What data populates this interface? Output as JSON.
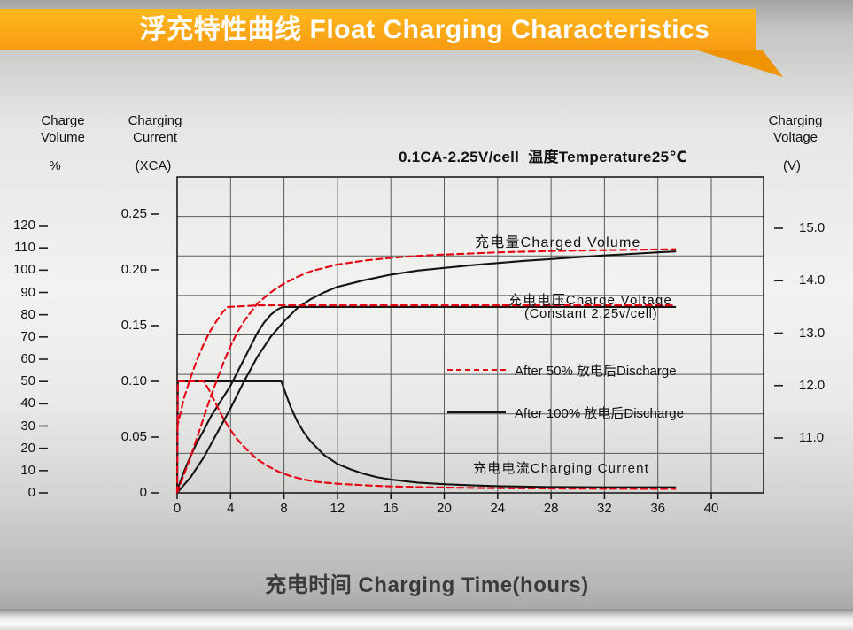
{
  "colors": {
    "banner_orange": "#f89b13",
    "accent_red": "#e60012",
    "curve_black": "#141414"
  },
  "chart_data": {
    "type": "line",
    "title": "浮充特性曲线 Float Charging Characteristics",
    "subtitle": "0.1CA-2.25V/cell  温度Temperature25℃",
    "xlabel": "充电时间 Charging Time(hours)",
    "grid": true,
    "axes": {
      "x": {
        "title": "充电时间 Charging Time(hours)",
        "range": [
          0,
          44
        ],
        "ticks": [
          "0",
          "4",
          "8",
          "12",
          "16",
          "20",
          "24",
          "28",
          "32",
          "36",
          "40"
        ]
      },
      "percent": {
        "title": "Charge Volume",
        "unit": "%",
        "range": [
          0,
          142
        ],
        "ticks": [
          "0",
          "10",
          "20",
          "30",
          "40",
          "50",
          "60",
          "70",
          "80",
          "90",
          "100",
          "110",
          "120"
        ]
      },
      "current": {
        "title": "Charging Current",
        "unit": "(XCA)",
        "range": [
          0,
          0.283
        ],
        "ticks": [
          "0",
          "0.05",
          "0.10",
          "0.15",
          "0.20",
          "0.25"
        ]
      },
      "voltage": {
        "title": "Charging Voltage",
        "unit": "(V)",
        "range": [
          9.95,
          15.98
        ],
        "ticks": [
          "11.0",
          "12.0",
          "13.0",
          "14.0",
          "15.0"
        ]
      }
    },
    "annotations": {
      "charged_volume": "充电量Charged Volume",
      "charge_voltage": "充电电压Charge Voltage",
      "charge_voltage_sub": "(Constant 2.25v/cell)",
      "charging_current": "充电电流Charging Current"
    },
    "legend": [
      {
        "style": "dashed",
        "color": "#e60012",
        "label": "After 50% 放电后Discharge"
      },
      {
        "style": "solid",
        "color": "#141414",
        "label": "After 100% 放电后Discharge"
      }
    ],
    "series": [
      {
        "id": "charged-volume-100",
        "name": "充电量 Charged Volume (after 100% discharge)",
        "axis": "percent",
        "line": "solid",
        "color": "#141414",
        "points": [
          [
            0,
            0
          ],
          [
            1,
            7
          ],
          [
            2,
            16
          ],
          [
            3,
            27
          ],
          [
            4,
            38
          ],
          [
            5,
            50
          ],
          [
            6,
            61
          ],
          [
            7,
            70
          ],
          [
            8,
            77
          ],
          [
            9,
            83
          ],
          [
            10,
            87
          ],
          [
            11,
            90
          ],
          [
            12,
            92.5
          ],
          [
            14,
            95.5
          ],
          [
            16,
            98
          ],
          [
            18,
            99.8
          ],
          [
            20,
            101
          ],
          [
            22,
            102.2
          ],
          [
            24,
            103.2
          ],
          [
            26,
            104.2
          ],
          [
            28,
            105
          ],
          [
            30,
            105.8
          ],
          [
            32,
            106.6
          ],
          [
            34,
            107.3
          ],
          [
            36,
            108
          ],
          [
            37.3,
            108.4
          ]
        ]
      },
      {
        "id": "voltage-100",
        "name": "充电电压 Charge Voltage (after 100% discharge)",
        "axis": "voltage",
        "line": "solid",
        "color": "#141414",
        "points": [
          [
            0,
            10
          ],
          [
            0.5,
            10.35
          ],
          [
            1,
            10.65
          ],
          [
            1.5,
            10.92
          ],
          [
            2,
            11.15
          ],
          [
            2.5,
            11.4
          ],
          [
            3,
            11.6
          ],
          [
            3.5,
            11.8
          ],
          [
            4,
            12
          ],
          [
            4.5,
            12.25
          ],
          [
            5,
            12.5
          ],
          [
            5.5,
            12.75
          ],
          [
            6,
            13
          ],
          [
            6.5,
            13.2
          ],
          [
            7,
            13.35
          ],
          [
            7.5,
            13.45
          ],
          [
            7.9,
            13.5
          ],
          [
            12,
            13.5
          ],
          [
            18,
            13.5
          ],
          [
            24,
            13.5
          ],
          [
            30,
            13.5
          ],
          [
            37.3,
            13.5
          ]
        ]
      },
      {
        "id": "current-100",
        "name": "充电电流 Charging Current (after 100% discharge)",
        "axis": "current",
        "line": "solid",
        "color": "#141414",
        "points": [
          [
            0,
            0
          ],
          [
            0.05,
            0.1
          ],
          [
            4,
            0.1
          ],
          [
            7.8,
            0.1
          ],
          [
            8.1,
            0.09
          ],
          [
            8.5,
            0.077
          ],
          [
            9,
            0.064
          ],
          [
            9.5,
            0.054
          ],
          [
            10,
            0.046
          ],
          [
            11,
            0.034
          ],
          [
            12,
            0.026
          ],
          [
            13,
            0.021
          ],
          [
            14,
            0.017
          ],
          [
            15,
            0.014
          ],
          [
            16,
            0.012
          ],
          [
            18,
            0.0092
          ],
          [
            20,
            0.0078
          ],
          [
            22,
            0.0068
          ],
          [
            24,
            0.006
          ],
          [
            26,
            0.0056
          ],
          [
            28,
            0.0052
          ],
          [
            32,
            0.005
          ],
          [
            36,
            0.005
          ],
          [
            37.3,
            0.005
          ]
        ]
      },
      {
        "id": "charged-volume-50",
        "name": "充电量 Charged Volume (after 50% discharge)",
        "axis": "percent",
        "line": "dashed",
        "color": "#e60012",
        "points": [
          [
            0,
            0
          ],
          [
            0.5,
            8
          ],
          [
            1,
            16
          ],
          [
            1.5,
            25
          ],
          [
            2,
            34
          ],
          [
            2.5,
            43
          ],
          [
            3,
            51
          ],
          [
            3.5,
            59
          ],
          [
            4,
            66
          ],
          [
            4.5,
            72
          ],
          [
            5,
            77
          ],
          [
            6,
            85
          ],
          [
            7,
            90
          ],
          [
            8,
            94
          ],
          [
            9,
            97
          ],
          [
            10,
            99.5
          ],
          [
            11,
            101
          ],
          [
            12,
            102.5
          ],
          [
            14,
            104.3
          ],
          [
            16,
            105.5
          ],
          [
            18,
            106.4
          ],
          [
            20,
            107
          ],
          [
            22,
            107.5
          ],
          [
            24,
            108
          ],
          [
            28,
            108.6
          ],
          [
            32,
            109
          ],
          [
            36,
            109.3
          ],
          [
            37.3,
            109.4
          ]
        ]
      },
      {
        "id": "voltage-50",
        "name": "充电电压 Charge Voltage (after 50% discharge)",
        "axis": "voltage",
        "line": "dashed",
        "color": "#e60012",
        "points": [
          [
            0,
            11.2
          ],
          [
            0.5,
            11.75
          ],
          [
            1,
            12.15
          ],
          [
            1.5,
            12.5
          ],
          [
            2,
            12.8
          ],
          [
            2.5,
            13.05
          ],
          [
            3,
            13.25
          ],
          [
            3.4,
            13.4
          ],
          [
            3.8,
            13.5
          ],
          [
            6,
            13.53
          ],
          [
            12,
            13.53
          ],
          [
            18,
            13.53
          ],
          [
            24,
            13.53
          ],
          [
            30,
            13.53
          ],
          [
            37.3,
            13.53
          ]
        ]
      },
      {
        "id": "current-50",
        "name": "充电电流 Charging Current (after 50% discharge)",
        "axis": "current",
        "line": "dashed",
        "color": "#e60012",
        "points": [
          [
            0,
            0
          ],
          [
            0.05,
            0.1
          ],
          [
            2,
            0.1
          ],
          [
            2.4,
            0.092
          ],
          [
            2.9,
            0.08
          ],
          [
            3.4,
            0.068
          ],
          [
            3.9,
            0.058
          ],
          [
            4.5,
            0.048
          ],
          [
            5.2,
            0.039
          ],
          [
            6,
            0.03
          ],
          [
            6.8,
            0.024
          ],
          [
            7.6,
            0.019
          ],
          [
            8.5,
            0.015
          ],
          [
            9.5,
            0.012
          ],
          [
            10.5,
            0.0098
          ],
          [
            12,
            0.0082
          ],
          [
            14,
            0.0068
          ],
          [
            16,
            0.0058
          ],
          [
            18,
            0.0052
          ],
          [
            20,
            0.0048
          ],
          [
            24,
            0.0042
          ],
          [
            28,
            0.0039
          ],
          [
            32,
            0.0037
          ],
          [
            36,
            0.0036
          ],
          [
            37.3,
            0.0036
          ]
        ]
      }
    ]
  }
}
